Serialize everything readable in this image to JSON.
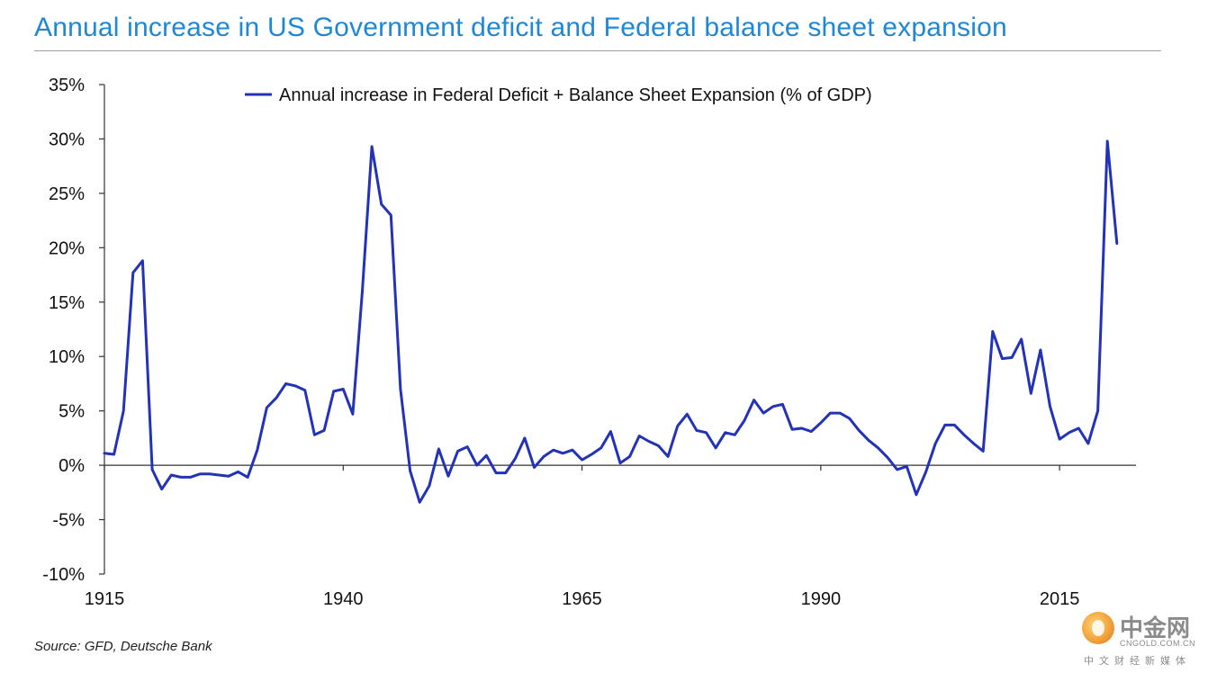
{
  "chart_data": {
    "type": "line",
    "title": "Annual increase in US Government deficit and Federal balance sheet expansion",
    "xlabel": "",
    "ylabel": "",
    "xlim": [
      1915,
      2023
    ],
    "ylim": [
      -10,
      35
    ],
    "x_ticks": [
      1915,
      1940,
      1965,
      1990,
      2015
    ],
    "x_tick_labels": [
      "1915",
      "1940",
      "1965",
      "1990",
      "2015"
    ],
    "y_ticks": [
      -10,
      -5,
      0,
      5,
      10,
      15,
      20,
      25,
      30,
      35
    ],
    "y_tick_labels": [
      "-10%",
      "-5%",
      "0%",
      "5%",
      "10%",
      "15%",
      "20%",
      "25%",
      "30%",
      "35%"
    ],
    "grid": false,
    "legend_position": "top",
    "series": [
      {
        "name": "Annual increase in Federal Deficit + Balance Sheet Expansion (% of GDP)",
        "color": "#2233b8",
        "x": [
          1915,
          1916,
          1917,
          1918,
          1919,
          1920,
          1921,
          1922,
          1923,
          1924,
          1925,
          1926,
          1927,
          1928,
          1929,
          1930,
          1931,
          1932,
          1933,
          1934,
          1935,
          1936,
          1937,
          1938,
          1939,
          1940,
          1941,
          1942,
          1943,
          1944,
          1945,
          1946,
          1947,
          1948,
          1949,
          1950,
          1951,
          1952,
          1953,
          1954,
          1955,
          1956,
          1957,
          1958,
          1959,
          1960,
          1961,
          1962,
          1963,
          1964,
          1965,
          1966,
          1967,
          1968,
          1969,
          1970,
          1971,
          1972,
          1973,
          1974,
          1975,
          1976,
          1977,
          1978,
          1979,
          1980,
          1981,
          1982,
          1983,
          1984,
          1985,
          1986,
          1987,
          1988,
          1989,
          1990,
          1991,
          1992,
          1993,
          1994,
          1995,
          1996,
          1997,
          1998,
          1999,
          2000,
          2001,
          2002,
          2003,
          2004,
          2005,
          2006,
          2007,
          2008,
          2009,
          2010,
          2011,
          2012,
          2013,
          2014,
          2015,
          2016,
          2017,
          2018,
          2019,
          2020,
          2021
        ],
        "values": [
          1.1,
          1.0,
          5.0,
          17.7,
          18.8,
          -0.4,
          -2.2,
          -0.9,
          -1.1,
          -1.1,
          -0.8,
          -0.8,
          -0.9,
          -1.0,
          -0.6,
          -1.1,
          1.4,
          5.3,
          6.2,
          7.5,
          7.3,
          6.9,
          2.8,
          3.2,
          6.8,
          7.0,
          4.7,
          16.0,
          29.3,
          24.0,
          23.0,
          7.0,
          -0.5,
          -3.4,
          -1.9,
          1.5,
          -1.0,
          1.3,
          1.7,
          0.0,
          0.9,
          -0.7,
          -0.7,
          0.6,
          2.5,
          -0.2,
          0.8,
          1.4,
          1.1,
          1.4,
          0.5,
          1.0,
          1.6,
          3.1,
          0.2,
          0.8,
          2.7,
          2.2,
          1.8,
          0.8,
          3.6,
          4.7,
          3.2,
          3.0,
          1.6,
          3.0,
          2.8,
          4.1,
          6.0,
          4.8,
          5.4,
          5.6,
          3.3,
          3.4,
          3.1,
          3.9,
          4.8,
          4.8,
          4.3,
          3.2,
          2.3,
          1.6,
          0.7,
          -0.4,
          -0.1,
          -2.7,
          -0.6,
          2.0,
          3.7,
          3.7,
          2.8,
          2.0,
          1.3,
          12.3,
          9.8,
          9.9,
          11.6,
          6.6,
          10.6,
          5.4,
          2.4,
          3.0,
          3.4,
          2.0,
          5.0,
          29.8,
          20.4
        ]
      }
    ]
  },
  "source": "Source: GFD, Deutsche Bank",
  "watermark": {
    "name": "中金网",
    "domain": "CNGOLD.COM.CN",
    "tagline": "中文财经新媒体"
  }
}
